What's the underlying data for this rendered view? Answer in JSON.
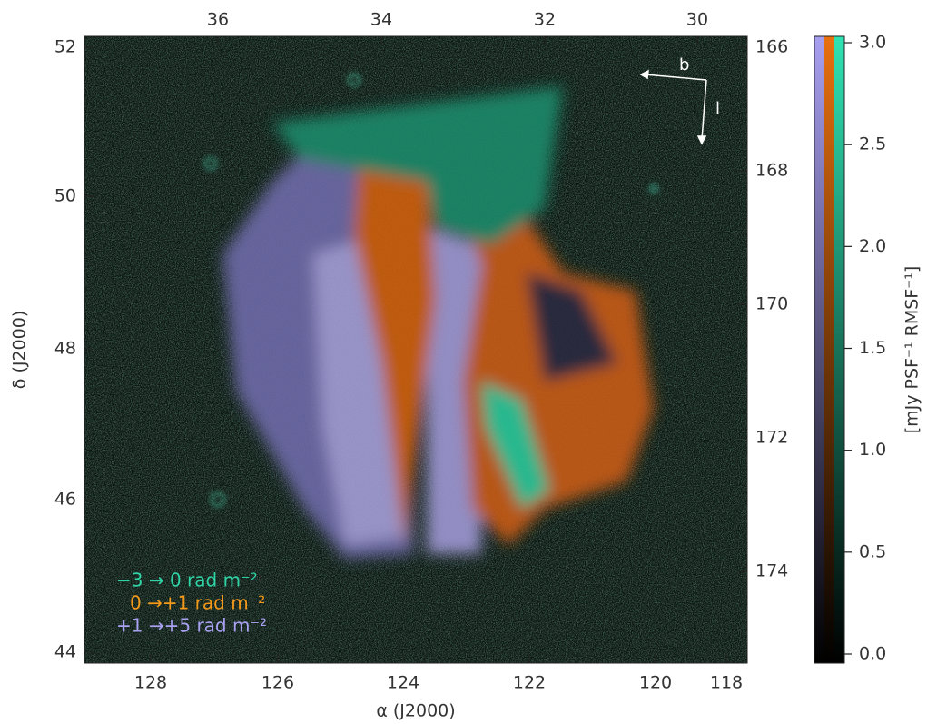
{
  "axes": {
    "bottom": {
      "label": "α (J2000)",
      "ticks": [
        "128",
        "126",
        "124",
        "122",
        "120",
        "118"
      ]
    },
    "left": {
      "label": "δ (J2000)",
      "ticks": [
        "52",
        "50",
        "48",
        "46",
        "44"
      ]
    },
    "top": {
      "ticks": [
        "36",
        "34",
        "32",
        "30"
      ]
    },
    "right": {
      "ticks": [
        "166",
        "168",
        "170",
        "172",
        "174"
      ]
    }
  },
  "colorbar": {
    "label": "[mJy PSF⁻¹ RMSF⁻¹]",
    "ticks": [
      "3.0",
      "2.5",
      "2.0",
      "1.5",
      "1.0",
      "0.5",
      "0.0"
    ]
  },
  "legend": [
    "−3 →  0 rad m⁻²",
    "0 →+1 rad m⁻²",
    "+1 →+5 rad m⁻²"
  ],
  "compass": {
    "b": "b",
    "l": "l"
  }
}
